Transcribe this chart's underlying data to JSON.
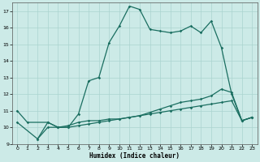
{
  "xlabel": "Humidex (Indice chaleur)",
  "bg_color": "#cceae7",
  "grid_color": "#aad4d0",
  "line_color": "#1a6e60",
  "xlim": [
    -0.5,
    23.5
  ],
  "ylim": [
    9,
    17.5
  ],
  "yticks": [
    9,
    10,
    11,
    12,
    13,
    14,
    15,
    16,
    17
  ],
  "xticks": [
    0,
    1,
    2,
    3,
    4,
    5,
    6,
    7,
    8,
    9,
    10,
    11,
    12,
    13,
    14,
    15,
    16,
    17,
    18,
    19,
    20,
    21,
    22,
    23
  ],
  "line1_x": [
    0,
    1,
    3,
    4,
    5,
    6,
    7,
    8,
    9,
    10,
    11,
    12,
    13,
    14,
    15,
    16,
    17,
    18,
    19,
    20,
    21,
    22,
    23
  ],
  "line1_y": [
    11.0,
    10.3,
    10.3,
    10.0,
    10.0,
    10.8,
    12.8,
    13.0,
    15.1,
    16.1,
    17.3,
    17.1,
    15.9,
    15.8,
    15.7,
    15.8,
    16.1,
    15.7,
    16.4,
    14.8,
    12.0,
    10.4,
    10.6
  ],
  "line2_x": [
    0,
    2,
    3,
    4,
    5,
    6,
    7,
    8,
    9,
    10,
    11,
    12,
    13,
    14,
    15,
    16,
    17,
    18,
    19,
    20,
    21,
    22,
    23
  ],
  "line2_y": [
    10.3,
    9.3,
    10.3,
    10.0,
    10.1,
    10.3,
    10.4,
    10.4,
    10.5,
    10.5,
    10.6,
    10.7,
    10.9,
    11.1,
    11.3,
    11.5,
    11.6,
    11.7,
    11.9,
    12.3,
    12.1,
    10.4,
    10.6
  ],
  "line3_x": [
    2,
    3,
    4,
    5,
    6,
    7,
    8,
    9,
    10,
    11,
    12,
    13,
    14,
    15,
    16,
    17,
    18,
    19,
    20,
    21,
    22,
    23
  ],
  "line3_y": [
    9.3,
    10.0,
    10.0,
    10.0,
    10.1,
    10.2,
    10.3,
    10.4,
    10.5,
    10.6,
    10.7,
    10.8,
    10.9,
    11.0,
    11.1,
    11.2,
    11.3,
    11.4,
    11.5,
    11.6,
    10.4,
    10.6
  ]
}
